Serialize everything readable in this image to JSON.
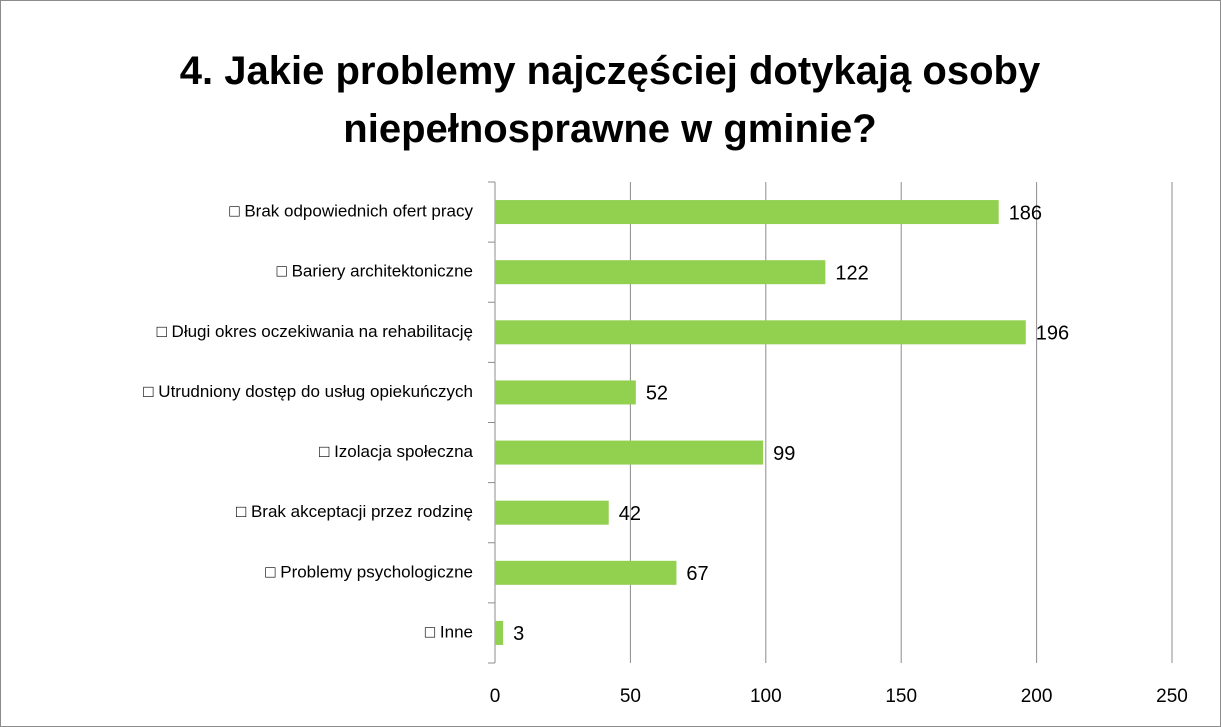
{
  "chart_data": {
    "type": "bar",
    "orientation": "horizontal",
    "title": "4. Jakie problemy najczęściej dotykają osoby niepełnosprawne w gminie?",
    "categories": [
      "□ Brak odpowiednich ofert pracy",
      "□ Bariery architektoniczne",
      "□ Długi okres oczekiwania na rehabilitację",
      "□ Utrudniony dostęp do usług opiekuńczych",
      "□ Izolacja społeczna",
      "□ Brak akceptacji przez rodzinę",
      "□ Problemy psychologiczne",
      "□ Inne"
    ],
    "values": [
      186,
      122,
      196,
      52,
      99,
      42,
      67,
      3
    ],
    "color": "#92d050",
    "xlim": [
      0,
      250
    ],
    "xticks": [
      0,
      50,
      100,
      150,
      200,
      250
    ],
    "grid": true
  }
}
